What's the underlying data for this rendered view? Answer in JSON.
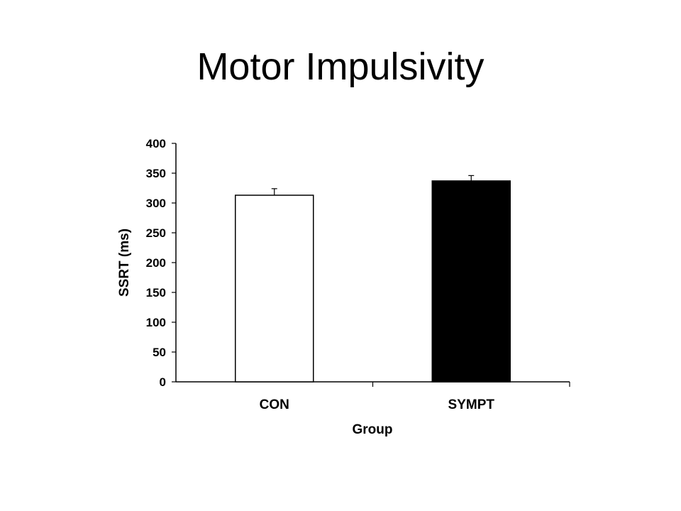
{
  "slide": {
    "title": "Motor Impulsivity"
  },
  "chart_data": {
    "type": "bar",
    "categories": [
      "CON",
      "SYMPT"
    ],
    "values": [
      313,
      337
    ],
    "errors": [
      11,
      9
    ],
    "bar_colors": [
      "#ffffff",
      "#000000"
    ],
    "bar_stroke": "#000000",
    "xlabel": "Group",
    "ylabel": "SSRT (ms)",
    "ylim": [
      0,
      400
    ],
    "yticks": [
      0,
      50,
      100,
      150,
      200,
      250,
      300,
      350,
      400
    ],
    "grid": false,
    "legend": "none"
  }
}
